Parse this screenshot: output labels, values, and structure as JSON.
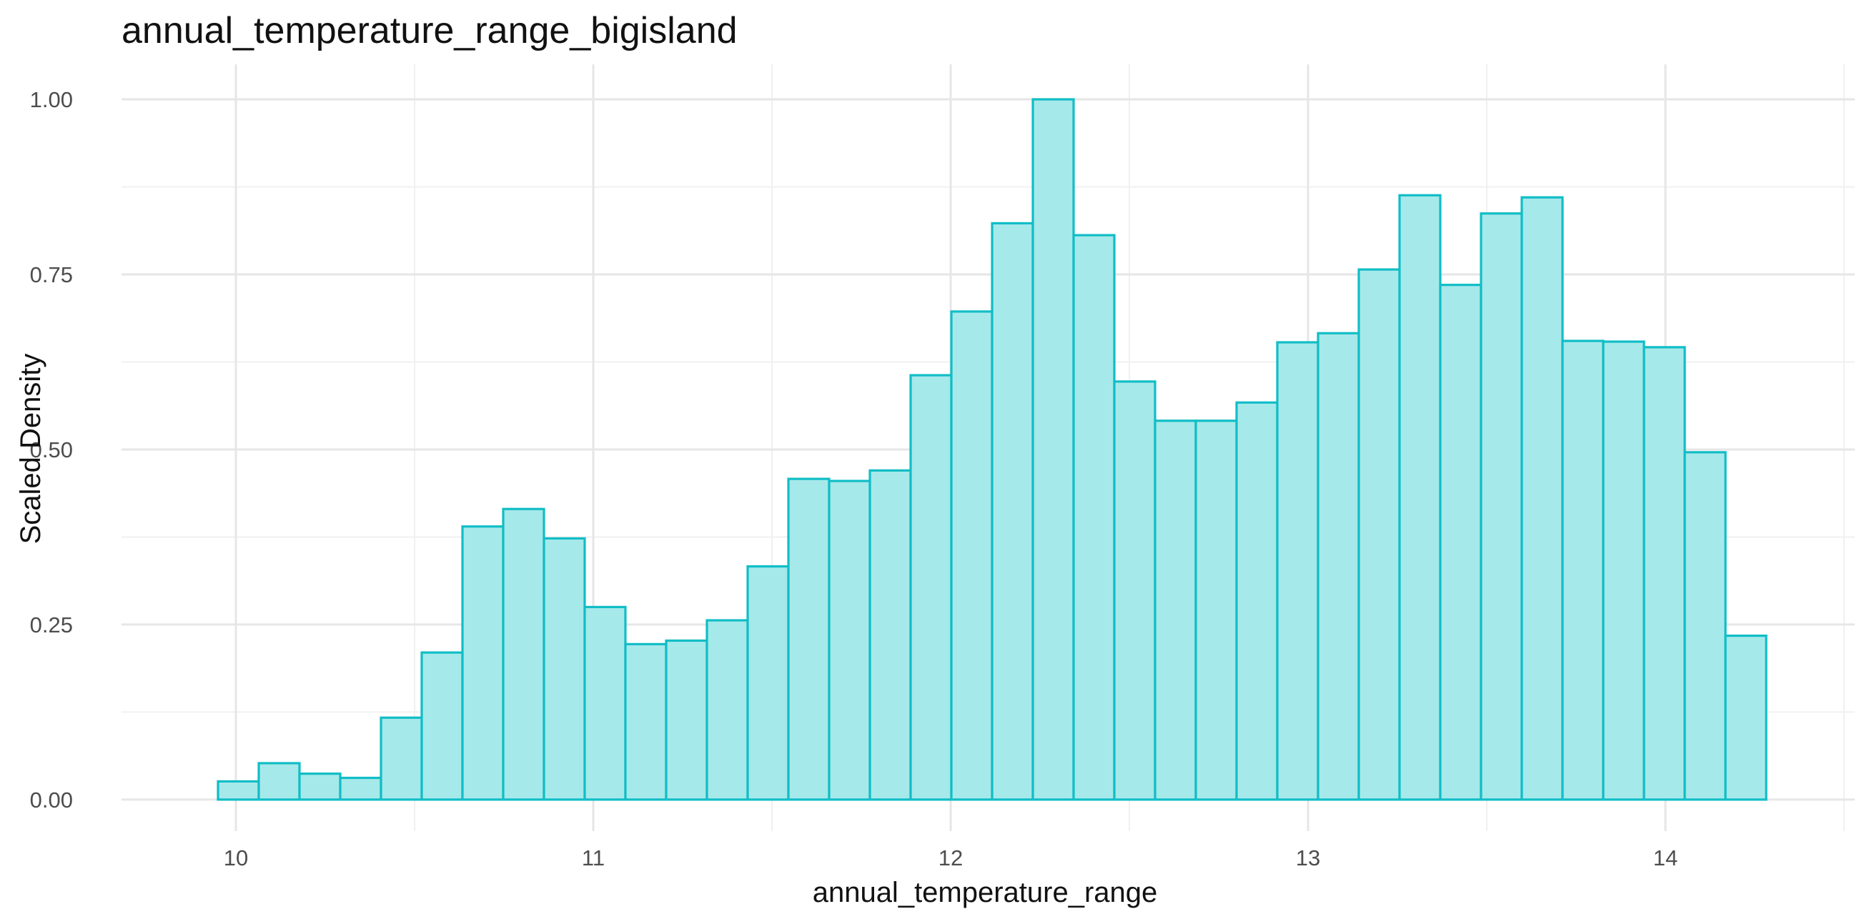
{
  "chart_data": {
    "type": "bar",
    "title": "annual_temperature_range_bigisland",
    "xlabel": "annual_temperature_range",
    "ylabel": "Scaled Density",
    "xlim": [
      9.68,
      14.53
    ],
    "ylim": [
      -0.045,
      1.05
    ],
    "x_ticks": [
      10,
      11,
      12,
      13,
      14
    ],
    "x_tick_labels": [
      "10",
      "11",
      "12",
      "13",
      "14"
    ],
    "y_ticks": [
      0,
      0.25,
      0.5,
      0.75,
      1.0
    ],
    "y_tick_labels": [
      "0.00",
      "0.25",
      "0.50",
      "0.75",
      "1.00"
    ],
    "grid": true,
    "colors": {
      "fill": "#a6e9ea",
      "stroke": "#11bdc6"
    },
    "bins": {
      "edges": [
        9.95,
        10.064,
        10.178,
        10.292,
        10.406,
        10.52,
        10.634,
        10.748,
        10.862,
        10.976,
        11.09,
        11.204,
        11.318,
        11.432,
        11.546,
        11.66,
        11.774,
        11.888,
        12.002,
        12.116,
        12.23,
        12.344,
        12.458,
        12.572,
        12.686,
        12.8,
        12.914,
        13.028,
        13.142,
        13.256,
        13.37,
        13.484,
        13.598,
        13.712,
        13.826,
        13.94,
        14.054,
        14.168,
        14.282
      ],
      "values": [
        0.026,
        0.052,
        0.037,
        0.031,
        0.117,
        0.21,
        0.39,
        0.415,
        0.373,
        0.275,
        0.222,
        0.227,
        0.256,
        0.333,
        0.458,
        0.455,
        0.47,
        0.606,
        0.697,
        0.823,
        1.0,
        0.806,
        0.597,
        0.541,
        0.541,
        0.567,
        0.653,
        0.666,
        0.757,
        0.863,
        0.735,
        0.837,
        0.86,
        0.655,
        0.654,
        0.646,
        0.496,
        0.234
      ]
    }
  }
}
